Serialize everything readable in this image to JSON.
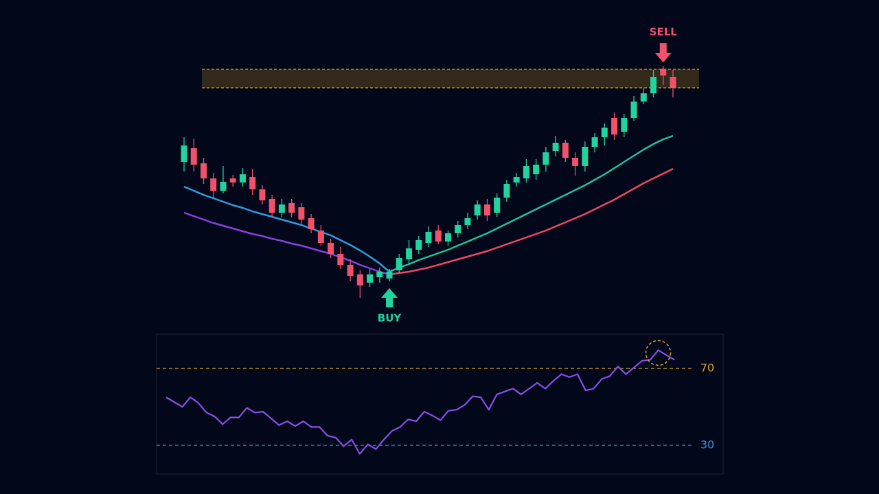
{
  "chart_data": [
    {
      "type": "candlestick",
      "open": [
        264,
        284,
        262,
        240,
        222,
        240,
        234,
        242,
        224,
        210,
        190,
        204,
        198,
        182,
        164,
        146,
        130,
        114,
        100,
        88,
        96,
        94,
        106,
        122,
        136,
        146,
        164,
        148,
        160,
        172,
        186,
        202,
        190,
        212,
        234,
        240,
        246,
        260,
        280,
        292,
        270,
        258,
        286,
        300,
        328,
        308,
        328,
        352,
        364,
        400,
        388
      ],
      "high": [
        300,
        298,
        270,
        248,
        258,
        245,
        255,
        254,
        230,
        216,
        210,
        210,
        204,
        188,
        172,
        152,
        140,
        122,
        106,
        108,
        110,
        108,
        130,
        150,
        156,
        170,
        172,
        164,
        178,
        190,
        208,
        210,
        218,
        238,
        248,
        268,
        268,
        286,
        302,
        296,
        278,
        294,
        306,
        320,
        336,
        334,
        360,
        372,
        398,
        404,
        398
      ],
      "low": [
        250,
        250,
        232,
        210,
        218,
        228,
        228,
        216,
        202,
        184,
        184,
        184,
        174,
        160,
        142,
        124,
        108,
        90,
        66,
        82,
        88,
        90,
        102,
        116,
        130,
        140,
        144,
        142,
        154,
        166,
        180,
        178,
        184,
        206,
        228,
        234,
        238,
        250,
        272,
        264,
        244,
        250,
        278,
        288,
        296,
        300,
        324,
        348,
        358,
        376,
        358
      ],
      "close": [
        288,
        260,
        240,
        222,
        235,
        234,
        246,
        224,
        208,
        190,
        202,
        190,
        180,
        166,
        146,
        130,
        114,
        98,
        84,
        100,
        104,
        104,
        124,
        138,
        150,
        162,
        148,
        160,
        172,
        182,
        202,
        186,
        212,
        232,
        242,
        258,
        260,
        278,
        292,
        270,
        258,
        286,
        300,
        314,
        304,
        328,
        352,
        364,
        388,
        390,
        372
      ],
      "up_color": "#22d39f",
      "down_color": "#f2516b",
      "series": [
        {
          "color": "#2f9ce0",
          "values": [
            228,
            222,
            216,
            211,
            206,
            201,
            197,
            192,
            188,
            184,
            180,
            176,
            172,
            167,
            162,
            157,
            150,
            143,
            135,
            126,
            116,
            104,
            null,
            null,
            null,
            null,
            null,
            null,
            null,
            null,
            null,
            null,
            null,
            null,
            null,
            null,
            null,
            null,
            null,
            null,
            null,
            null,
            null,
            null,
            null,
            null,
            null,
            null,
            null,
            null,
            null
          ]
        },
        {
          "color": "#1fc39a",
          "values": [
            null,
            null,
            null,
            null,
            null,
            null,
            null,
            null,
            null,
            null,
            null,
            null,
            null,
            null,
            null,
            null,
            null,
            null,
            null,
            null,
            null,
            104,
            110,
            115,
            121,
            126,
            131,
            136,
            142,
            148,
            154,
            160,
            167,
            174,
            181,
            188,
            195,
            202,
            209,
            216,
            223,
            230,
            238,
            246,
            255,
            264,
            273,
            282,
            290,
            297,
            302
          ]
        },
        {
          "color": "#8a3fe0",
          "values": [
            190,
            185,
            180,
            175,
            171,
            167,
            163,
            159,
            156,
            152,
            149,
            145,
            142,
            138,
            134,
            130,
            125,
            120,
            114,
            109,
            104,
            100,
            null,
            null,
            null,
            null,
            null,
            null,
            null,
            null,
            null,
            null,
            null,
            null,
            null,
            null,
            null,
            null,
            null,
            null,
            null,
            null,
            null,
            null,
            null,
            null,
            null,
            null,
            null,
            null,
            null
          ]
        },
        {
          "color": "#ef4765",
          "values": [
            null,
            null,
            null,
            null,
            null,
            null,
            null,
            null,
            null,
            null,
            null,
            null,
            null,
            null,
            null,
            null,
            null,
            null,
            null,
            null,
            null,
            100,
            102,
            104,
            107,
            110,
            114,
            118,
            122,
            126,
            130,
            134,
            139,
            144,
            149,
            154,
            159,
            164,
            170,
            176,
            182,
            188,
            195,
            202,
            209,
            217,
            225,
            233,
            240,
            247,
            254
          ]
        }
      ],
      "resistance_zone": [
        372,
        399
      ],
      "zone_color": "#d9a520",
      "signals": [
        {
          "label": "BUY",
          "index": 21,
          "color": "#22d39f"
        },
        {
          "label": "SELL",
          "index": 49,
          "color": "#f2516b"
        }
      ]
    },
    {
      "type": "line",
      "values": [
        55,
        52.5,
        50,
        55,
        52,
        47,
        45,
        41,
        44.5,
        44.5,
        49.5,
        47,
        47.5,
        44,
        40.5,
        42.5,
        40,
        42.5,
        39.5,
        39.5,
        35,
        34,
        29.5,
        33,
        25.5,
        30.5,
        28,
        33,
        37.5,
        39.5,
        43.5,
        42.5,
        47.5,
        45.5,
        43,
        48,
        48.5,
        51,
        55.5,
        55,
        48.5,
        56.5,
        58,
        59.5,
        56.5,
        59.5,
        62.5,
        59.5,
        63.5,
        67,
        65.5,
        67,
        58.5,
        59.5,
        64.5,
        66,
        71,
        67,
        70.5,
        74,
        74.5,
        79.5,
        77,
        74.5
      ],
      "color": "#8a4fe6",
      "levels": [
        70,
        30
      ],
      "level_colors": [
        "#d9a520",
        "#3b8fd6"
      ],
      "circled_index": 61,
      "circle_color": "#d9a520"
    }
  ]
}
